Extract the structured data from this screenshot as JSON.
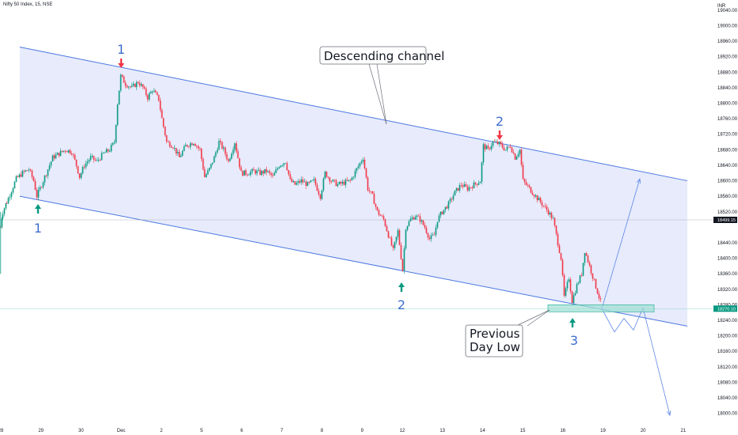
{
  "symbol_title": "Nifty 50 Index, 15, NSE",
  "currency": "INR",
  "chart_data": {
    "type": "candlestick",
    "y_axis": {
      "ticks": [
        "19040.00",
        "19000.00",
        "18960.00",
        "18920.00",
        "18880.00",
        "18840.00",
        "18800.00",
        "18760.00",
        "18720.00",
        "18680.00",
        "18640.00",
        "18600.00",
        "18560.00",
        "18520.00",
        "18440.00",
        "18400.00",
        "18360.00",
        "18320.00",
        "18280.00",
        "18240.00",
        "18200.00",
        "18160.00",
        "18120.00",
        "18080.00",
        "18040.00",
        "18000.00"
      ],
      "range": [
        17985,
        19050
      ],
      "position": "right"
    },
    "x_axis": {
      "ticks": [
        "28",
        "29",
        "30",
        "Dec",
        "2",
        "5",
        "6",
        "7",
        "8",
        "9",
        "12",
        "13",
        "14",
        "15",
        "16",
        "19",
        "20",
        "21"
      ]
    },
    "price_tags": [
      {
        "value": 18499.15,
        "label": "18499.15",
        "color": "#131722"
      },
      {
        "value": 18270.1,
        "label": "18270.10",
        "color": "#089981"
      }
    ],
    "candle_path": [
      [
        0,
        18480
      ],
      [
        3,
        18520
      ],
      [
        8,
        18545
      ],
      [
        14,
        18575
      ],
      [
        20,
        18605
      ],
      [
        28,
        18620
      ],
      [
        36,
        18630
      ],
      [
        42,
        18600
      ],
      [
        46,
        18560
      ],
      [
        52,
        18590
      ],
      [
        60,
        18630
      ],
      [
        66,
        18660
      ],
      [
        74,
        18670
      ],
      [
        82,
        18680
      ],
      [
        90,
        18675
      ],
      [
        96,
        18640
      ],
      [
        100,
        18610
      ],
      [
        106,
        18640
      ],
      [
        114,
        18660
      ],
      [
        122,
        18650
      ],
      [
        130,
        18670
      ],
      [
        138,
        18680
      ],
      [
        144,
        18700
      ],
      [
        148,
        18800
      ],
      [
        152,
        18870
      ],
      [
        158,
        18850
      ],
      [
        166,
        18840
      ],
      [
        174,
        18855
      ],
      [
        180,
        18840
      ],
      [
        186,
        18815
      ],
      [
        192,
        18835
      ],
      [
        200,
        18810
      ],
      [
        204,
        18760
      ],
      [
        210,
        18700
      ],
      [
        218,
        18690
      ],
      [
        226,
        18660
      ],
      [
        234,
        18690
      ],
      [
        244,
        18700
      ],
      [
        252,
        18680
      ],
      [
        258,
        18610
      ],
      [
        264,
        18630
      ],
      [
        270,
        18660
      ],
      [
        276,
        18700
      ],
      [
        282,
        18680
      ],
      [
        288,
        18650
      ],
      [
        296,
        18700
      ],
      [
        304,
        18620
      ],
      [
        312,
        18620
      ],
      [
        320,
        18625
      ],
      [
        328,
        18620
      ],
      [
        336,
        18625
      ],
      [
        344,
        18610
      ],
      [
        352,
        18640
      ],
      [
        360,
        18650
      ],
      [
        366,
        18600
      ],
      [
        372,
        18590
      ],
      [
        380,
        18600
      ],
      [
        388,
        18590
      ],
      [
        396,
        18600
      ],
      [
        404,
        18560
      ],
      [
        410,
        18620
      ],
      [
        418,
        18600
      ],
      [
        426,
        18590
      ],
      [
        434,
        18595
      ],
      [
        442,
        18600
      ],
      [
        450,
        18630
      ],
      [
        458,
        18660
      ],
      [
        464,
        18580
      ],
      [
        470,
        18560
      ],
      [
        476,
        18520
      ],
      [
        484,
        18500
      ],
      [
        490,
        18460
      ],
      [
        496,
        18420
      ],
      [
        502,
        18470
      ],
      [
        508,
        18370
      ],
      [
        512,
        18480
      ],
      [
        518,
        18500
      ],
      [
        524,
        18510
      ],
      [
        530,
        18500
      ],
      [
        536,
        18480
      ],
      [
        542,
        18450
      ],
      [
        548,
        18460
      ],
      [
        552,
        18500
      ],
      [
        558,
        18520
      ],
      [
        566,
        18540
      ],
      [
        574,
        18570
      ],
      [
        582,
        18590
      ],
      [
        590,
        18580
      ],
      [
        598,
        18590
      ],
      [
        606,
        18600
      ],
      [
        610,
        18690
      ],
      [
        616,
        18680
      ],
      [
        622,
        18700
      ],
      [
        630,
        18695
      ],
      [
        638,
        18680
      ],
      [
        644,
        18690
      ],
      [
        650,
        18660
      ],
      [
        656,
        18680
      ],
      [
        660,
        18600
      ],
      [
        668,
        18580
      ],
      [
        676,
        18560
      ],
      [
        684,
        18540
      ],
      [
        692,
        18520
      ],
      [
        698,
        18500
      ],
      [
        704,
        18440
      ],
      [
        708,
        18400
      ],
      [
        712,
        18300
      ],
      [
        718,
        18350
      ],
      [
        722,
        18290
      ],
      [
        728,
        18330
      ],
      [
        734,
        18360
      ],
      [
        738,
        18420
      ],
      [
        744,
        18380
      ],
      [
        750,
        18340
      ],
      [
        756,
        18300
      ],
      [
        760,
        18275
      ]
    ],
    "channel": {
      "upper": {
        "from": {
          "x": 25,
          "y": 18945
        },
        "to": {
          "x": 868,
          "y": 18600
        }
      },
      "lower": {
        "from": {
          "x": 25,
          "y": 18560
        },
        "to": {
          "x": 868,
          "y": 18225
        }
      }
    },
    "support_zone": {
      "x_from": 692,
      "x_to": 826,
      "y_low": 18262,
      "y_high": 18280
    },
    "projection_up": [
      [
        760,
        18270
      ],
      [
        808,
        18605
      ]
    ],
    "projection_down": [
      [
        760,
        18270
      ],
      [
        776,
        18210
      ],
      [
        788,
        18245
      ],
      [
        800,
        18215
      ],
      [
        812,
        18272
      ],
      [
        846,
        17995
      ]
    ],
    "annotations": {
      "callout_channel": "Descending channel",
      "callout_pdl_line1": "Previous",
      "callout_pdl_line2": "Day Low",
      "top_1": "1",
      "top_2": "2",
      "bottom_1": "1",
      "bottom_2": "2",
      "bottom_3": "3"
    }
  }
}
